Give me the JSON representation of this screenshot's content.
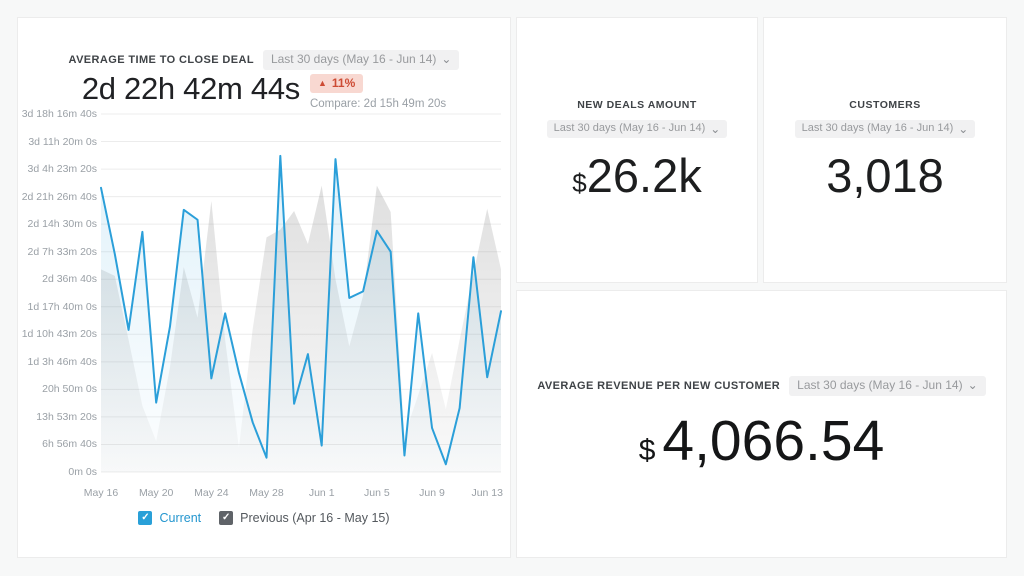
{
  "icons": {
    "check": "✓",
    "chevron_down": "⌄",
    "triangle_up": "▲"
  },
  "colors": {
    "accent_blue": "#2b9fd9",
    "previous_gray": "#d7d7d7",
    "badge_bg": "#f8d8d1",
    "badge_text": "#cd4b34",
    "muted_text": "#9aa0a6",
    "card_border": "#ececec"
  },
  "time_to_close": {
    "title": "AVERAGE TIME TO CLOSE DEAL",
    "range_label": "Last 30 days (May 16 - Jun 14)",
    "value": "2d 22h 42m 44s",
    "delta": "11%",
    "delta_direction": "up",
    "compare": "Compare: 2d 15h 49m 20s",
    "legend": [
      {
        "label": "Current",
        "checkbox_color": "#29a0d8",
        "label_color": "#2496cf",
        "checked": true
      },
      {
        "label": "Previous (Apr 16 - May 15)",
        "checkbox_color": "#5f6368",
        "label_color": "#54595e",
        "checked": true
      }
    ]
  },
  "chart_data": {
    "type": "line",
    "title": "Average time to close deal — Current vs Previous period",
    "grid": true,
    "legend_position": "bottom",
    "x": [
      "May 16",
      "May 17",
      "May 18",
      "May 19",
      "May 20",
      "May 21",
      "May 22",
      "May 23",
      "May 24",
      "May 25",
      "May 26",
      "May 27",
      "May 28",
      "May 29",
      "May 30",
      "May 31",
      "Jun 1",
      "Jun 2",
      "Jun 3",
      "Jun 4",
      "Jun 5",
      "Jun 6",
      "Jun 7",
      "Jun 8",
      "Jun 9",
      "Jun 10",
      "Jun 11",
      "Jun 12",
      "Jun 13",
      "Jun 14"
    ],
    "x_tick_indices": [
      0,
      4,
      8,
      12,
      16,
      20,
      24,
      28
    ],
    "x_tick_labels": [
      "May 16",
      "May 20",
      "May 24",
      "May 28",
      "Jun 1",
      "Jun 5",
      "Jun 9",
      "Jun 13"
    ],
    "y_axis": {
      "min_seconds": 0,
      "max_seconds": 325000,
      "tick_step_seconds": 25000
    },
    "y_tick_labels_top_to_bottom": [
      "3d 18h 16m 40s",
      "3d 11h 20m 0s",
      "3d 4h 23m 20s",
      "2d 21h 26m 40s",
      "2d 14h 30m 0s",
      "2d 7h 33m 20s",
      "2d 36m 40s",
      "1d 17h 40m 0s",
      "1d 10h 43m 20s",
      "1d 3h 46m 40s",
      "20h 50m 0s",
      "13h 53m 20s",
      "6h 56m 40s",
      "0m 0s"
    ],
    "series": [
      {
        "name": "Previous (Apr 16 - May 15)",
        "style": "area",
        "color": "#d7d7d7",
        "values_seconds": [
          184000,
          178000,
          120000,
          60000,
          28000,
          95000,
          186000,
          140000,
          246000,
          120000,
          22000,
          130000,
          213000,
          220000,
          237000,
          207000,
          260000,
          175000,
          114000,
          160000,
          260000,
          236000,
          33000,
          70000,
          108000,
          57000,
          120000,
          180000,
          239000,
          184000
        ]
      },
      {
        "name": "Current",
        "style": "line-area",
        "color": "#2b9fd9",
        "values_seconds": [
          258000,
          198000,
          129000,
          218000,
          63000,
          132000,
          238000,
          229000,
          85000,
          144000,
          90000,
          45000,
          13000,
          287000,
          62000,
          107000,
          24000,
          284000,
          158000,
          164000,
          219000,
          200000,
          15000,
          144000,
          40000,
          7000,
          58000,
          195000,
          86000,
          146000
        ]
      }
    ]
  },
  "new_deals": {
    "title": "NEW DEALS AMOUNT",
    "range_label": "Last 30 days (May 16 - Jun 14)",
    "currency": "$",
    "value": "26.2k"
  },
  "customers": {
    "title": "CUSTOMERS",
    "range_label": "Last 30 days (May 16 - Jun 14)",
    "value": "3,018"
  },
  "avg_revenue": {
    "title": "AVERAGE REVENUE PER NEW CUSTOMER",
    "range_label": "Last 30 days (May 16 - Jun 14)",
    "currency": "$",
    "value": "4,066.54"
  }
}
